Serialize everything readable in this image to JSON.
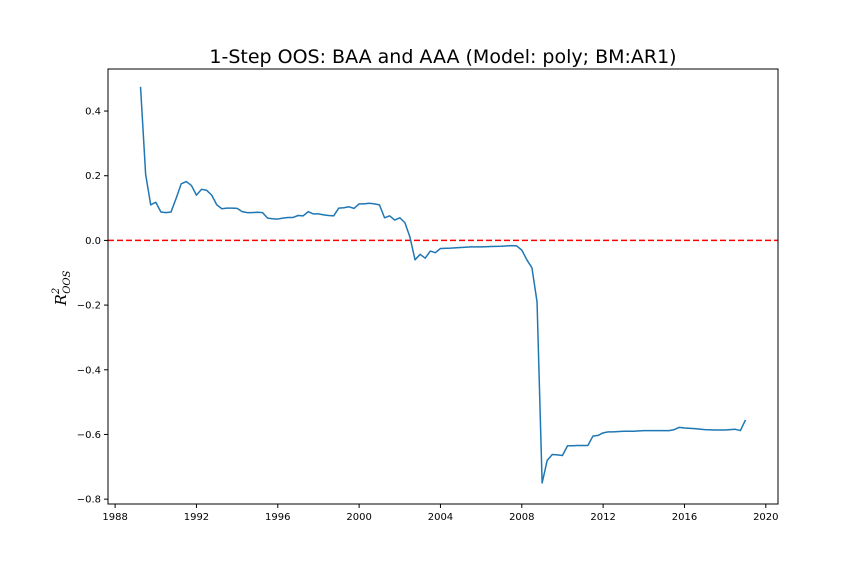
{
  "chart_data": {
    "type": "line",
    "title": "1-Step OOS: BAA and AAA (Model: poly; BM:AR1)",
    "ylabel": {
      "base": "R",
      "sup": "2",
      "sub": "OOS"
    },
    "xlabel": "",
    "xlim": [
      1987.65,
      2020.6
    ],
    "ylim": [
      -0.815,
      0.53
    ],
    "xticks": [
      1988,
      1992,
      1996,
      2000,
      2004,
      2008,
      2012,
      2016,
      2020
    ],
    "yticks": [
      -0.8,
      -0.6,
      -0.4,
      -0.2,
      0.0,
      0.2,
      0.4
    ],
    "ytick_labels": [
      "−0.8",
      "−0.6",
      "−0.4",
      "−0.2",
      "0.0",
      "0.2",
      "0.4"
    ],
    "grid": false,
    "series": [
      {
        "color": "#1f77b4",
        "x": [
          1989.25,
          1989.5,
          1989.75,
          1990.0,
          1990.25,
          1990.5,
          1990.75,
          1991.0,
          1991.25,
          1991.5,
          1991.75,
          1992.0,
          1992.25,
          1992.5,
          1992.75,
          1993.0,
          1993.25,
          1993.5,
          1993.75,
          1994.0,
          1994.25,
          1994.5,
          1994.75,
          1995.0,
          1995.25,
          1995.5,
          1995.75,
          1996.0,
          1996.25,
          1996.5,
          1996.75,
          1997.0,
          1997.25,
          1997.5,
          1997.75,
          1998.0,
          1998.25,
          1998.5,
          1998.75,
          1999.0,
          1999.25,
          1999.5,
          1999.75,
          2000.0,
          2000.25,
          2000.5,
          2000.75,
          2001.0,
          2001.25,
          2001.5,
          2001.75,
          2002.0,
          2002.25,
          2002.5,
          2002.75,
          2003.0,
          2003.25,
          2003.5,
          2003.75,
          2004.0,
          2004.5,
          2005.0,
          2005.5,
          2006.0,
          2006.5,
          2007.0,
          2007.5,
          2007.75,
          2008.0,
          2008.25,
          2008.5,
          2008.75,
          2009.0,
          2009.25,
          2009.5,
          2009.75,
          2010.0,
          2010.25,
          2010.5,
          2010.75,
          2011.0,
          2011.25,
          2011.5,
          2011.75,
          2012.0,
          2012.25,
          2012.5,
          2013.0,
          2013.5,
          2014.0,
          2014.5,
          2015.0,
          2015.25,
          2015.5,
          2015.75,
          2016.0,
          2016.5,
          2017.0,
          2017.5,
          2018.0,
          2018.5,
          2018.75,
          2019.0
        ],
        "y": [
          0.475,
          0.205,
          0.11,
          0.118,
          0.088,
          0.086,
          0.088,
          0.13,
          0.175,
          0.182,
          0.17,
          0.14,
          0.158,
          0.155,
          0.14,
          0.11,
          0.098,
          0.1,
          0.1,
          0.099,
          0.089,
          0.086,
          0.086,
          0.087,
          0.086,
          0.069,
          0.067,
          0.066,
          0.069,
          0.071,
          0.071,
          0.077,
          0.076,
          0.089,
          0.082,
          0.082,
          0.079,
          0.077,
          0.076,
          0.1,
          0.101,
          0.104,
          0.099,
          0.113,
          0.113,
          0.115,
          0.113,
          0.11,
          0.07,
          0.076,
          0.063,
          0.07,
          0.055,
          0.01,
          -0.06,
          -0.043,
          -0.055,
          -0.033,
          -0.038,
          -0.025,
          -0.024,
          -0.022,
          -0.02,
          -0.02,
          -0.019,
          -0.018,
          -0.016,
          -0.017,
          -0.03,
          -0.06,
          -0.085,
          -0.19,
          -0.75,
          -0.68,
          -0.662,
          -0.663,
          -0.665,
          -0.635,
          -0.635,
          -0.634,
          -0.634,
          -0.634,
          -0.605,
          -0.603,
          -0.595,
          -0.592,
          -0.592,
          -0.59,
          -0.59,
          -0.588,
          -0.588,
          -0.588,
          -0.588,
          -0.585,
          -0.578,
          -0.58,
          -0.582,
          -0.585,
          -0.586,
          -0.586,
          -0.584,
          -0.588,
          -0.555
        ]
      }
    ],
    "reference_line": {
      "y": 0.0,
      "color": "#ff0000",
      "style": "dashed"
    }
  }
}
